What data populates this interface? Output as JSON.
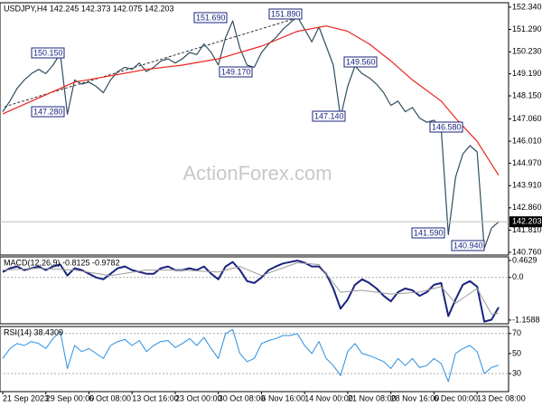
{
  "chart_data": [
    {
      "type": "line",
      "title": "USDJPY,H4  142.245 142.373 142.075 142.203",
      "watermark": "ActionForex.com",
      "xlim": [
        0,
        70
      ],
      "ylim": [
        140.63,
        152.55
      ],
      "grid": false,
      "yticks": [
        {
          "value": 152.34,
          "label": "152.340"
        },
        {
          "value": 151.29,
          "label": "151.290"
        },
        {
          "value": 150.23,
          "label": "150.230"
        },
        {
          "value": 149.19,
          "label": "149.190"
        },
        {
          "value": 148.15,
          "label": "148.150"
        },
        {
          "value": 147.06,
          "label": "147.060"
        },
        {
          "value": 146.01,
          "label": "146.010"
        },
        {
          "value": 144.97,
          "label": "144.970"
        },
        {
          "value": 143.91,
          "label": "143.910"
        },
        {
          "value": 142.86,
          "label": "142.860"
        },
        {
          "value": 141.81,
          "label": "141.810"
        },
        {
          "value": 140.76,
          "label": "140.760"
        }
      ],
      "last_value": 142.203,
      "annotations": [
        "150.150",
        "147.280",
        "151.690",
        "149.170",
        "151.890",
        "149.560",
        "147.140",
        "146.580",
        "141.590",
        "140.940"
      ],
      "series": [
        {
          "color": "#2f4f5f",
          "x": [
            0,
            1,
            2,
            3,
            4,
            5,
            6,
            7,
            8,
            9,
            10,
            11,
            12,
            13,
            14,
            15,
            16,
            17,
            18,
            19,
            20,
            21,
            22,
            23,
            24,
            25,
            26,
            27,
            28,
            29,
            30,
            31,
            32,
            33,
            34,
            35,
            36,
            37,
            38,
            39,
            40,
            41,
            42,
            43,
            44,
            45,
            46,
            47,
            48,
            49,
            50,
            51,
            52,
            53,
            54,
            55,
            56,
            57,
            58,
            59,
            60,
            61,
            62,
            63,
            64,
            65,
            66,
            67,
            68,
            69
          ],
          "values": [
            147.4,
            147.9,
            148.5,
            148.9,
            149.2,
            149.4,
            149.2,
            149.6,
            150.15,
            147.28,
            148.9,
            148.7,
            148.8,
            148.6,
            148.3,
            148.9,
            149.3,
            149.5,
            149.4,
            149.7,
            149.3,
            149.5,
            149.8,
            149.9,
            149.7,
            149.9,
            150.2,
            150.1,
            150.6,
            150.2,
            149.6,
            150.9,
            151.69,
            150.4,
            149.6,
            149.5,
            150.2,
            150.6,
            150.9,
            151.3,
            151.6,
            151.89,
            151.3,
            150.7,
            151.4,
            150.5,
            149.6,
            147.14,
            148.6,
            149.56,
            149.2,
            149.0,
            148.7,
            148.3,
            147.7,
            147.9,
            147.4,
            147.6,
            147.1,
            146.9,
            147.0,
            146.58,
            141.59,
            144.3,
            145.4,
            145.8,
            145.5,
            140.94,
            141.9,
            142.2
          ]
        },
        {
          "color": "#e8251d",
          "x": [
            0,
            6,
            10,
            15,
            20,
            25,
            30,
            36,
            41,
            45,
            48,
            51,
            54,
            57,
            61,
            63,
            66,
            69
          ],
          "values": [
            147.3,
            148.2,
            148.8,
            149.1,
            149.4,
            149.6,
            149.9,
            150.5,
            151.2,
            151.45,
            151.2,
            150.6,
            149.8,
            148.9,
            147.9,
            147.1,
            146.0,
            144.4
          ]
        }
      ]
    },
    {
      "type": "line",
      "title": "MACD(12,26,9) -0.8125 -0.9782",
      "xlim": [
        0,
        70
      ],
      "ylim": [
        -1.26,
        0.56
      ],
      "grid": false,
      "yticks": [
        0.4629,
        {
          "value": 0,
          "label": "0.0"
        },
        -1.1588
      ],
      "level_lines": [
        0
      ],
      "series": [
        {
          "color": "#1a237e",
          "width": 2,
          "x": [
            0,
            1,
            2,
            3,
            4,
            5,
            6,
            7,
            8,
            9,
            10,
            11,
            12,
            13,
            14,
            15,
            16,
            17,
            18,
            19,
            20,
            21,
            22,
            23,
            24,
            25,
            26,
            27,
            28,
            29,
            30,
            31,
            32,
            33,
            34,
            35,
            36,
            37,
            38,
            39,
            40,
            41,
            42,
            43,
            44,
            45,
            46,
            47,
            48,
            49,
            50,
            51,
            52,
            53,
            54,
            55,
            56,
            57,
            58,
            59,
            60,
            61,
            62,
            63,
            64,
            65,
            66,
            67,
            68,
            69
          ],
          "values": [
            0.15,
            0.25,
            0.3,
            0.2,
            0.25,
            0.3,
            0.2,
            0.3,
            0.35,
            0.05,
            0.25,
            0.2,
            0.1,
            0.0,
            -0.05,
            0.1,
            0.25,
            0.3,
            0.2,
            0.15,
            0.1,
            0.1,
            0.25,
            0.3,
            0.2,
            0.2,
            0.25,
            0.2,
            0.3,
            0.1,
            -0.05,
            0.3,
            0.42,
            0.2,
            -0.1,
            -0.15,
            0.0,
            0.2,
            0.3,
            0.38,
            0.42,
            0.46,
            0.4,
            0.3,
            0.3,
            0.1,
            -0.3,
            -0.85,
            -0.6,
            -0.2,
            -0.05,
            -0.15,
            -0.3,
            -0.5,
            -0.65,
            -0.4,
            -0.3,
            -0.35,
            -0.5,
            -0.4,
            -0.2,
            -0.15,
            -1.05,
            -0.6,
            -0.2,
            -0.1,
            -0.25,
            -1.2,
            -1.15,
            -0.8125
          ]
        },
        {
          "color": "#9a9a9a",
          "width": 1,
          "x": [
            0,
            5,
            10,
            15,
            20,
            25,
            30,
            33,
            36,
            41,
            44,
            47,
            50,
            54,
            58,
            61,
            63,
            66,
            68,
            69
          ],
          "values": [
            0.2,
            0.25,
            0.2,
            0.05,
            0.2,
            0.2,
            0.15,
            0.3,
            0.05,
            0.4,
            0.35,
            -0.4,
            -0.35,
            -0.45,
            -0.4,
            -0.25,
            -0.7,
            -0.3,
            -1.0,
            -0.9782
          ]
        }
      ]
    },
    {
      "type": "line",
      "title": "RSI(14) 38.4309",
      "xlim": [
        0,
        70
      ],
      "ylim": [
        12,
        77
      ],
      "grid": false,
      "yticks": [
        70,
        50,
        30
      ],
      "level_lines": [
        70,
        30
      ],
      "xticks": [
        {
          "value": 0,
          "label": "21 Sep 2023"
        },
        {
          "value": 6,
          "label": "29 Sep 00:00"
        },
        {
          "value": 12,
          "label": "6 Oct 08:00"
        },
        {
          "value": 18,
          "label": "13 Oct 16:00"
        },
        {
          "value": 24,
          "label": "23 Oct 00:00"
        },
        {
          "value": 30,
          "label": "30 Oct 08:00"
        },
        {
          "value": 36,
          "label": "6 Nov 16:00"
        },
        {
          "value": 42,
          "label": "14 Nov 00:00"
        },
        {
          "value": 48,
          "label": "21 Nov 08:00"
        },
        {
          "value": 54,
          "label": "28 Nov 16:00"
        },
        {
          "value": 60,
          "label": "6 Dec 00:00"
        },
        {
          "value": 66,
          "label": "13 Dec 08:00"
        }
      ],
      "series": [
        {
          "color": "#2a8fe0",
          "width": 1,
          "x": [
            0,
            1,
            2,
            3,
            4,
            5,
            6,
            7,
            8,
            9,
            10,
            11,
            12,
            13,
            14,
            15,
            16,
            17,
            18,
            19,
            20,
            21,
            22,
            23,
            24,
            25,
            26,
            27,
            28,
            29,
            30,
            31,
            32,
            33,
            34,
            35,
            36,
            37,
            38,
            39,
            40,
            41,
            42,
            43,
            44,
            45,
            46,
            47,
            48,
            49,
            50,
            51,
            52,
            53,
            54,
            55,
            56,
            57,
            58,
            59,
            60,
            61,
            62,
            63,
            64,
            65,
            66,
            67,
            68,
            69
          ],
          "values": [
            45,
            55,
            60,
            58,
            62,
            60,
            55,
            65,
            72,
            35,
            58,
            52,
            55,
            50,
            45,
            58,
            62,
            64,
            58,
            63,
            52,
            58,
            62,
            63,
            56,
            60,
            65,
            58,
            66,
            55,
            45,
            70,
            74,
            50,
            42,
            45,
            60,
            63,
            65,
            68,
            68,
            70,
            58,
            50,
            62,
            45,
            38,
            28,
            52,
            60,
            50,
            48,
            45,
            42,
            35,
            45,
            38,
            45,
            36,
            38,
            45,
            40,
            22,
            50,
            55,
            58,
            52,
            30,
            36,
            38.4309
          ]
        }
      ]
    }
  ]
}
